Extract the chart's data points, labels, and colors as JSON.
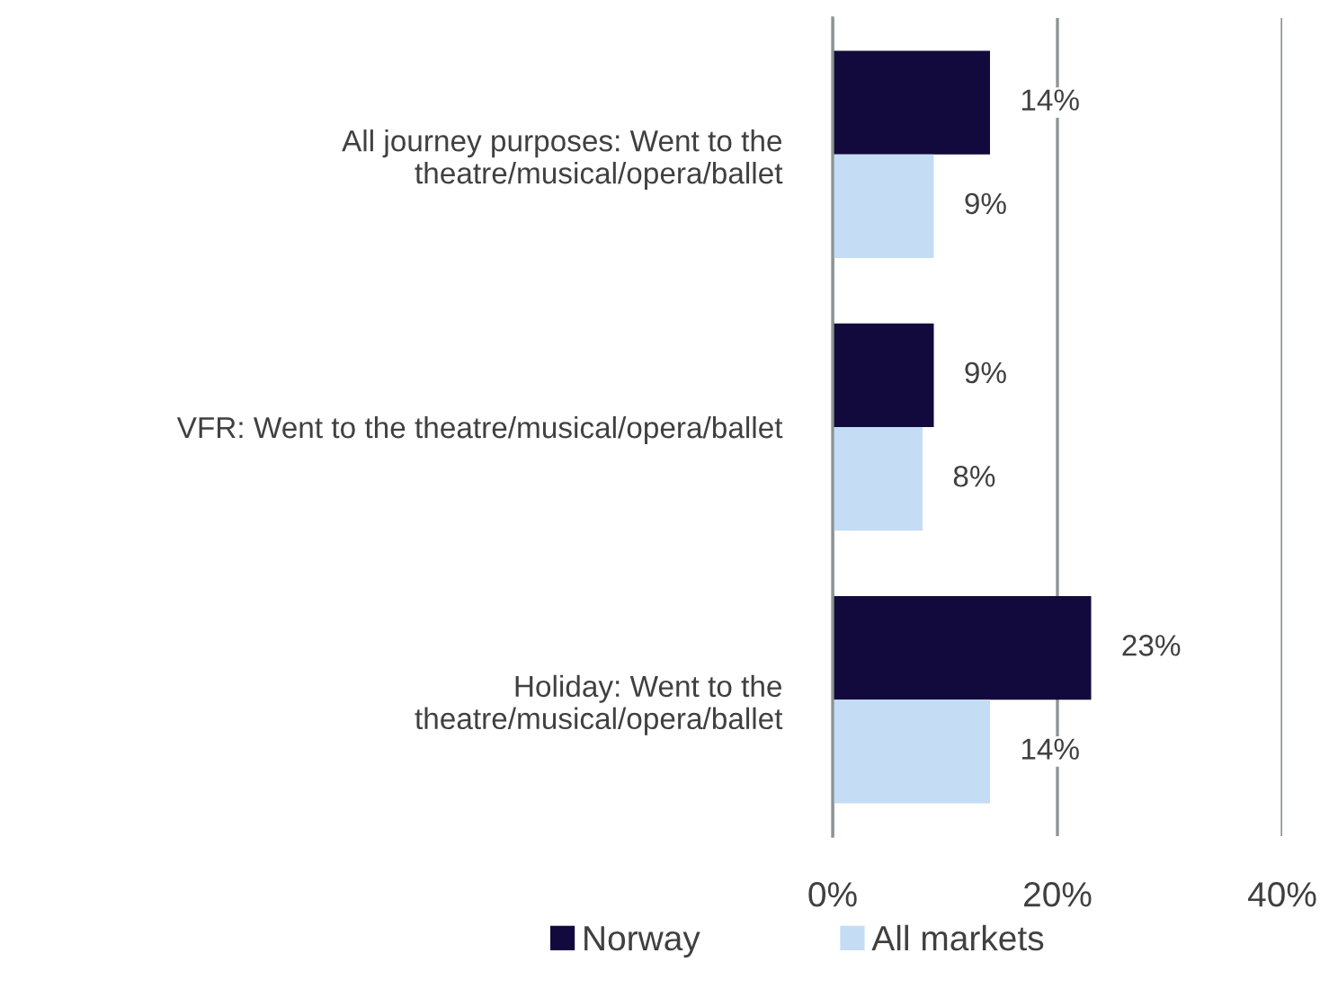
{
  "chart_data": {
    "type": "bar",
    "orientation": "horizontal",
    "categories": [
      "All journey purposes: Went to the\ntheatre/musical/opera/ballet",
      "VFR: Went to the theatre/musical/opera/ballet",
      "Holiday: Went to the\ntheatre/musical/opera/ballet"
    ],
    "series": [
      {
        "name": "Norway",
        "color": "#120a3c",
        "values": [
          14,
          9,
          23
        ],
        "value_labels": [
          "14%",
          "9%",
          "23%"
        ]
      },
      {
        "name": "All markets",
        "color": "#c5dcf5",
        "values": [
          9,
          8,
          14
        ],
        "value_labels": [
          "9%",
          "8%",
          "14%"
        ]
      }
    ],
    "xlim": [
      0,
      40
    ],
    "xticks": [
      {
        "value": 0,
        "label": "0%"
      },
      {
        "value": 20,
        "label": "20%"
      },
      {
        "value": 40,
        "label": "40%"
      }
    ],
    "grid": "x",
    "legend": "bottom"
  }
}
